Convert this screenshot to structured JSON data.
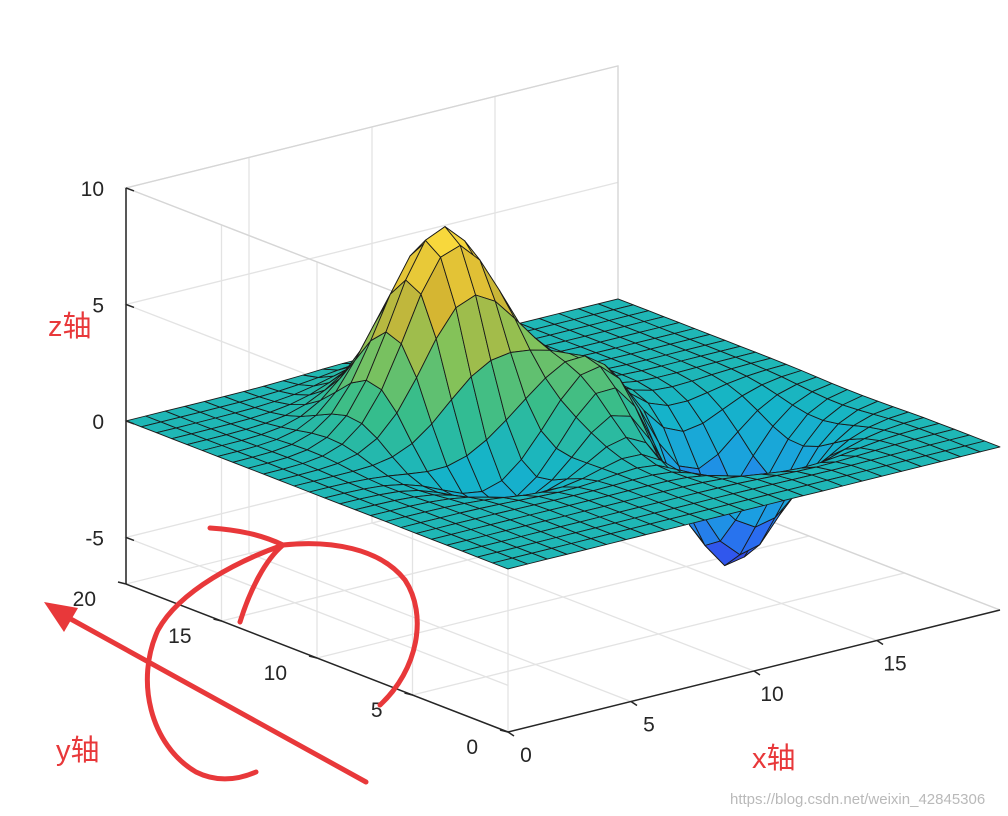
{
  "chart_data": {
    "type": "surface",
    "title": "",
    "x": {
      "range": [
        0,
        20
      ],
      "ticks": [
        "0",
        "5",
        "10",
        "15"
      ]
    },
    "y": {
      "range": [
        0,
        20
      ],
      "ticks": [
        "0",
        "5",
        "10",
        "15",
        "20"
      ]
    },
    "z": {
      "range": [
        -7,
        10
      ],
      "ticks": [
        "-5",
        "0",
        "5",
        "10"
      ]
    },
    "grid": true,
    "grid_size": 25,
    "surface_peaks": [
      {
        "x": 7.5,
        "y": 13.0,
        "z": 8.0
      },
      {
        "x": 11.5,
        "y": 9.5,
        "z": 3.5
      },
      {
        "x": 9.5,
        "y": 15.5,
        "z": 3.0
      }
    ],
    "surface_troughs": [
      {
        "x": 14.5,
        "y": 7.5,
        "z": -6.5
      },
      {
        "x": 7.0,
        "y": 10.0,
        "z": -3.0
      }
    ],
    "colormap": [
      "#3e26a8",
      "#2f5cf5",
      "#1ba0e0",
      "#15b4c8",
      "#36bd8c",
      "#82c25a",
      "#d3b432",
      "#f9d93c",
      "#fbf81f"
    ]
  },
  "annotations": {
    "z_label": "z轴",
    "y_label": "y轴",
    "x_label": "x轴",
    "color": "#e8383a"
  },
  "watermark": "https://blog.csdn.net/weixin_42845306"
}
